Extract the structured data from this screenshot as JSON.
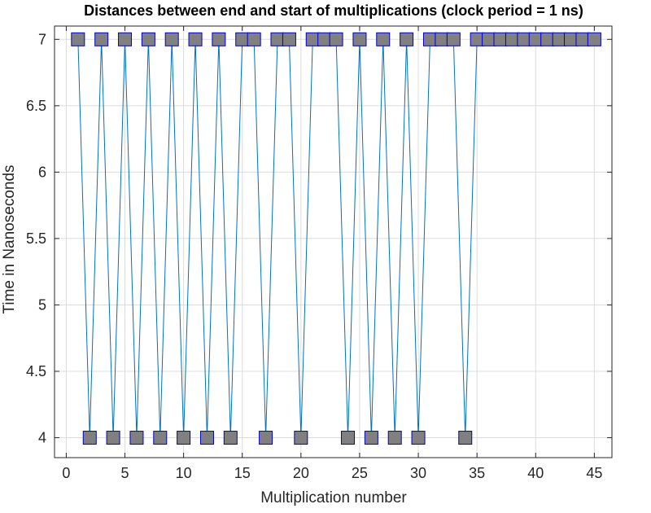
{
  "chart_data": {
    "type": "line",
    "title": "Distances between end and start of multiplications (clock period = 1 ns)",
    "xlabel": "Multiplication number",
    "ylabel": "Time in Nanoseconds",
    "xlim": [
      -1,
      46.5
    ],
    "ylim": [
      3.85,
      7.1
    ],
    "xticks": [
      0,
      5,
      10,
      15,
      20,
      25,
      30,
      35,
      40,
      45
    ],
    "yticks": [
      4,
      4.5,
      5,
      5.5,
      6,
      6.5,
      7
    ],
    "xtick_labels": [
      "0",
      "5",
      "10",
      "15",
      "20",
      "25",
      "30",
      "35",
      "40",
      "45"
    ],
    "ytick_labels": [
      "4",
      "4.5",
      "5",
      "5.5",
      "6",
      "6.5",
      "7"
    ],
    "grid": true,
    "colors": {
      "line": "#0072BD",
      "marker_fill": "#808080",
      "marker_edge": "#0000CC",
      "grid": "#dcdcdc",
      "axes": "#262626"
    },
    "series": [
      {
        "x": [
          1,
          2,
          3,
          4,
          5,
          6,
          7,
          8,
          9,
          10,
          11,
          12,
          13,
          14,
          15,
          16,
          17,
          18,
          19,
          20,
          21,
          22,
          23,
          24,
          25,
          26,
          27,
          28,
          29,
          30,
          31,
          32,
          33,
          34,
          35,
          36,
          37,
          38,
          39,
          40,
          41,
          42,
          43,
          44,
          45
        ],
        "y": [
          7,
          4,
          7,
          4,
          7,
          4,
          7,
          4,
          7,
          4,
          7,
          4,
          7,
          4,
          7,
          7,
          4,
          7,
          7,
          4,
          7,
          7,
          7,
          4,
          7,
          4,
          7,
          4,
          7,
          4,
          7,
          7,
          7,
          4,
          7,
          7,
          7,
          7,
          7,
          7,
          7,
          7,
          7,
          7,
          7
        ]
      }
    ]
  }
}
